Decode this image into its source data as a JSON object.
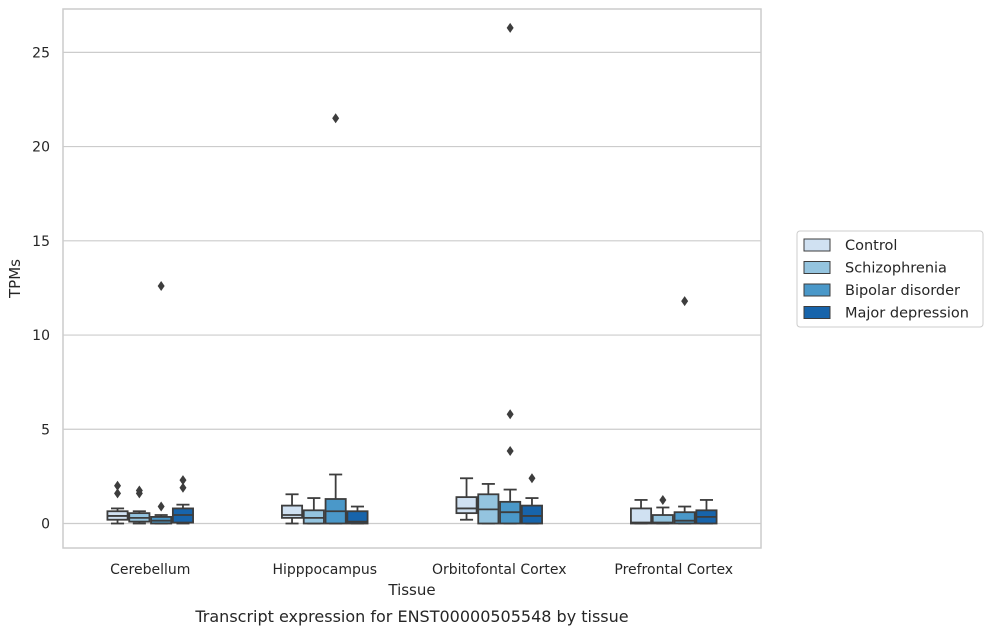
{
  "chart_data": {
    "type": "box",
    "title": "",
    "caption": "Transcript expression for ENST00000505548 by tissue",
    "xlabel": "Tissue",
    "ylabel": "TPMs",
    "ylim": [
      -1.3,
      27.3
    ],
    "yticks": [
      0,
      5,
      10,
      15,
      20,
      25
    ],
    "grid": "horizontal",
    "legend_position": "right",
    "categories": [
      "Cerebellum",
      "Hipppocampus",
      "Orbitofontal Cortex",
      "Prefrontal Cortex"
    ],
    "series": [
      {
        "name": "Control",
        "color": "#d0e1f2",
        "boxes": [
          {
            "whislo": 0.0,
            "q1": 0.2,
            "med": 0.4,
            "q3": 0.65,
            "whishi": 0.8,
            "fliers": [
              1.6,
              2.0
            ]
          },
          {
            "whislo": 0.0,
            "q1": 0.3,
            "med": 0.45,
            "q3": 0.95,
            "whishi": 1.55,
            "fliers": []
          },
          {
            "whislo": 0.2,
            "q1": 0.55,
            "med": 0.8,
            "q3": 1.4,
            "whishi": 2.4,
            "fliers": []
          },
          {
            "whislo": 0.0,
            "q1": 0.0,
            "med": 0.05,
            "q3": 0.8,
            "whishi": 1.25,
            "fliers": []
          }
        ]
      },
      {
        "name": "Schizophrenia",
        "color": "#94c4df",
        "boxes": [
          {
            "whislo": 0.0,
            "q1": 0.1,
            "med": 0.3,
            "q3": 0.55,
            "whishi": 0.65,
            "fliers": [
              1.6,
              1.75
            ]
          },
          {
            "whislo": 0.0,
            "q1": 0.0,
            "med": 0.3,
            "q3": 0.7,
            "whishi": 1.35,
            "fliers": []
          },
          {
            "whislo": 0.0,
            "q1": 0.0,
            "med": 0.75,
            "q3": 1.55,
            "whishi": 2.1,
            "fliers": []
          },
          {
            "whislo": 0.0,
            "q1": 0.0,
            "med": 0.05,
            "q3": 0.45,
            "whishi": 0.85,
            "fliers": [
              1.25
            ]
          }
        ]
      },
      {
        "name": "Bipolar disorder",
        "color": "#4a98c9",
        "boxes": [
          {
            "whislo": 0.0,
            "q1": 0.0,
            "med": 0.15,
            "q3": 0.35,
            "whishi": 0.45,
            "fliers": [
              0.9,
              12.6
            ]
          },
          {
            "whislo": 0.0,
            "q1": 0.0,
            "med": 0.65,
            "q3": 1.3,
            "whishi": 2.6,
            "fliers": [
              21.5
            ]
          },
          {
            "whislo": 0.0,
            "q1": 0.0,
            "med": 0.6,
            "q3": 1.15,
            "whishi": 1.8,
            "fliers": [
              3.85,
              5.8,
              26.3
            ]
          },
          {
            "whislo": 0.0,
            "q1": 0.0,
            "med": 0.15,
            "q3": 0.6,
            "whishi": 0.9,
            "fliers": [
              11.8
            ]
          }
        ]
      },
      {
        "name": "Major depression",
        "color": "#1764ab",
        "boxes": [
          {
            "whislo": 0.0,
            "q1": 0.05,
            "med": 0.45,
            "q3": 0.8,
            "whishi": 1.0,
            "fliers": [
              1.9,
              2.3
            ]
          },
          {
            "whislo": 0.0,
            "q1": 0.0,
            "med": 0.1,
            "q3": 0.65,
            "whishi": 0.9,
            "fliers": []
          },
          {
            "whislo": 0.0,
            "q1": 0.0,
            "med": 0.4,
            "q3": 0.95,
            "whishi": 1.35,
            "fliers": [
              2.4
            ]
          },
          {
            "whislo": 0.0,
            "q1": 0.0,
            "med": 0.35,
            "q3": 0.7,
            "whishi": 1.25,
            "fliers": []
          }
        ]
      }
    ]
  }
}
